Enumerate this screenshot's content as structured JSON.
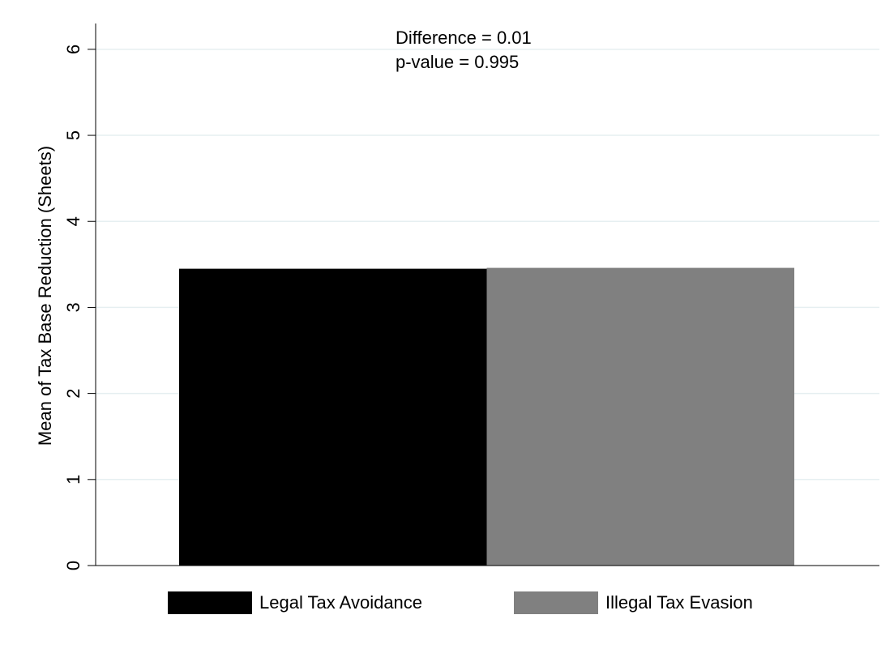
{
  "chart_data": {
    "type": "bar",
    "y_label": "Mean of Tax Base Reduction (Sheets)",
    "annotations": [
      "Difference = 0.01",
      "p-value = 0.995"
    ],
    "series": [
      {
        "name": "Legal Tax Avoidance",
        "color": "#000000",
        "values": [
          3.45
        ]
      },
      {
        "name": "Illegal Tax Evasion",
        "color": "#808080",
        "values": [
          3.46
        ]
      }
    ],
    "ylim": [
      0,
      6.3
    ],
    "yticks": [
      0,
      1,
      2,
      3,
      4,
      5,
      6
    ],
    "grid": true,
    "legend": "bottom"
  }
}
